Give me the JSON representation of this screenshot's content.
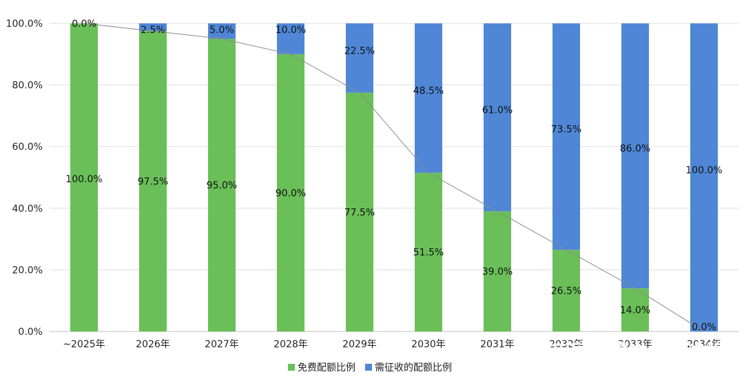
{
  "chart_data": {
    "type": "bar",
    "stacked": true,
    "percent": true,
    "categories": [
      "~2025年",
      "2026年",
      "2027年",
      "2028年",
      "2029年",
      "2030年",
      "2031年",
      "2032年",
      "2033年",
      "2034年"
    ],
    "series": [
      {
        "name": "免费配额比例",
        "color": "#6bbf59",
        "values": [
          100.0,
          97.5,
          95.0,
          90.0,
          77.5,
          51.5,
          39.0,
          26.5,
          14.0,
          0.0
        ],
        "labels": [
          "100.0%",
          "97.5%",
          "95.0%",
          "90.0%",
          "77.5%",
          "51.5%",
          "39.0%",
          "26.5%",
          "14.0%",
          "0.0%"
        ]
      },
      {
        "name": "需征收的配额比例",
        "color": "#4f87d6",
        "values": [
          0.0,
          2.5,
          5.0,
          10.0,
          22.5,
          48.5,
          61.0,
          73.5,
          86.0,
          100.0
        ],
        "labels": [
          "0.0%",
          "2.5%",
          "5.0%",
          "10.0%",
          "22.5%",
          "48.5%",
          "61.0%",
          "73.5%",
          "86.0%",
          "100.0%"
        ]
      }
    ],
    "yticks": [
      "0.0%",
      "20.0%",
      "40.0%",
      "60.0%",
      "80.0%",
      "100.0%"
    ],
    "ylim": [
      0,
      100
    ],
    "grid": true,
    "legend_position": "bottom",
    "trend_line": true
  },
  "watermark": {
    "text": "知乎 @碳中和碳达峰",
    "text_color": "#ffffff"
  }
}
